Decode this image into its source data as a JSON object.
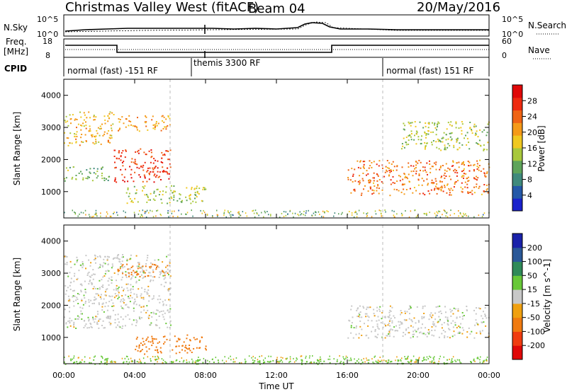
{
  "header": {
    "radar": "Christmas Valley West (fitACF)",
    "beam": "Beam 04",
    "date": "20/May/2016"
  },
  "time_axis": {
    "label": "Time UT",
    "ticks": [
      "00:00",
      "04:00",
      "08:00",
      "12:00",
      "16:00",
      "20:00",
      "00:00"
    ]
  },
  "strip_labels": {
    "nsky": "N.Sky",
    "nsearch": "N.Search",
    "freq_line1": "Freq.",
    "freq_line2": "[MHz]",
    "nave": "Nave",
    "cpid": "CPID",
    "nsky_ticks": [
      "10^5",
      "10^0"
    ],
    "nsearch_ticks": [
      "10^5",
      "10^0"
    ],
    "freq_ticks": [
      "18",
      "8"
    ],
    "nave_ticks": [
      "60",
      "0"
    ]
  },
  "cpid_segments": [
    {
      "label": "normal (fast) -151 RF",
      "start_hr": 0,
      "end_hr": 6
    },
    {
      "label": "themis 3300 RF",
      "start_hr": 6,
      "end_hr": 18
    },
    {
      "label": "normal (fast) 151 RF",
      "start_hr": 18,
      "end_hr": 24
    }
  ],
  "power_panel": {
    "ylabel": "Slant Range [km]",
    "yticks": [
      "1000",
      "2000",
      "3000",
      "4000"
    ],
    "colorbar_label": "Power [dB]",
    "colorbar_ticks": [
      "4",
      "8",
      "12",
      "16",
      "20",
      "24",
      "28"
    ],
    "colors": [
      "#1a22cc",
      "#2458a8",
      "#3f8a7c",
      "#5ea45a",
      "#a8c83c",
      "#f0c820",
      "#f59a18",
      "#f06414",
      "#ee2a10",
      "#e00808"
    ]
  },
  "velocity_panel": {
    "ylabel": "Slant Range [km]",
    "yticks": [
      "1000",
      "2000",
      "3000",
      "4000"
    ],
    "colorbar_label": "Velocity [m s^-1]",
    "colorbar_ticks": [
      "200",
      "100",
      "50",
      "15",
      "-15",
      "-50",
      "-100",
      "-200"
    ],
    "colors": [
      "#1a22aa",
      "#2a5898",
      "#2f8a58",
      "#68c838",
      "#c8c8c8",
      "#f0a010",
      "#f07a10",
      "#f03c10",
      "#e00808"
    ]
  },
  "chart_data": {
    "type": "heatmap",
    "x_range_hr": [
      0,
      24
    ],
    "y_range_km": [
      180,
      4500
    ],
    "power_regions": [
      {
        "t0": 0.0,
        "t1": 2.8,
        "r0": 2450,
        "r1": 3500,
        "level": 18
      },
      {
        "t0": 0.0,
        "t1": 2.6,
        "r0": 1350,
        "r1": 1800,
        "level": 12
      },
      {
        "t0": 2.8,
        "t1": 6.0,
        "r0": 1300,
        "r1": 2350,
        "level": 26
      },
      {
        "t0": 3.0,
        "t1": 6.0,
        "r0": 2900,
        "r1": 3400,
        "level": 20
      },
      {
        "t0": 3.5,
        "t1": 8.0,
        "r0": 650,
        "r1": 1200,
        "level": 14
      },
      {
        "t0": 16.0,
        "t1": 24.0,
        "r0": 900,
        "r1": 2000,
        "level": 22
      },
      {
        "t0": 19.0,
        "t1": 24.0,
        "r0": 2300,
        "r1": 3200,
        "level": 14
      }
    ],
    "velocity_regions": [
      {
        "t0": 0.0,
        "t1": 6.0,
        "r0": 1300,
        "r1": 3600,
        "level": 0
      },
      {
        "t0": 3.0,
        "t1": 6.0,
        "r0": 2900,
        "r1": 3300,
        "level": -50
      },
      {
        "t0": 4.0,
        "t1": 8.0,
        "r0": 500,
        "r1": 1100,
        "level": -50
      },
      {
        "t0": 16.0,
        "t1": 24.0,
        "r0": 1000,
        "r1": 2000,
        "level": 0
      },
      {
        "t0": 0.0,
        "t1": 24.0,
        "r0": 180,
        "r1": 320,
        "level": 20
      }
    ]
  }
}
